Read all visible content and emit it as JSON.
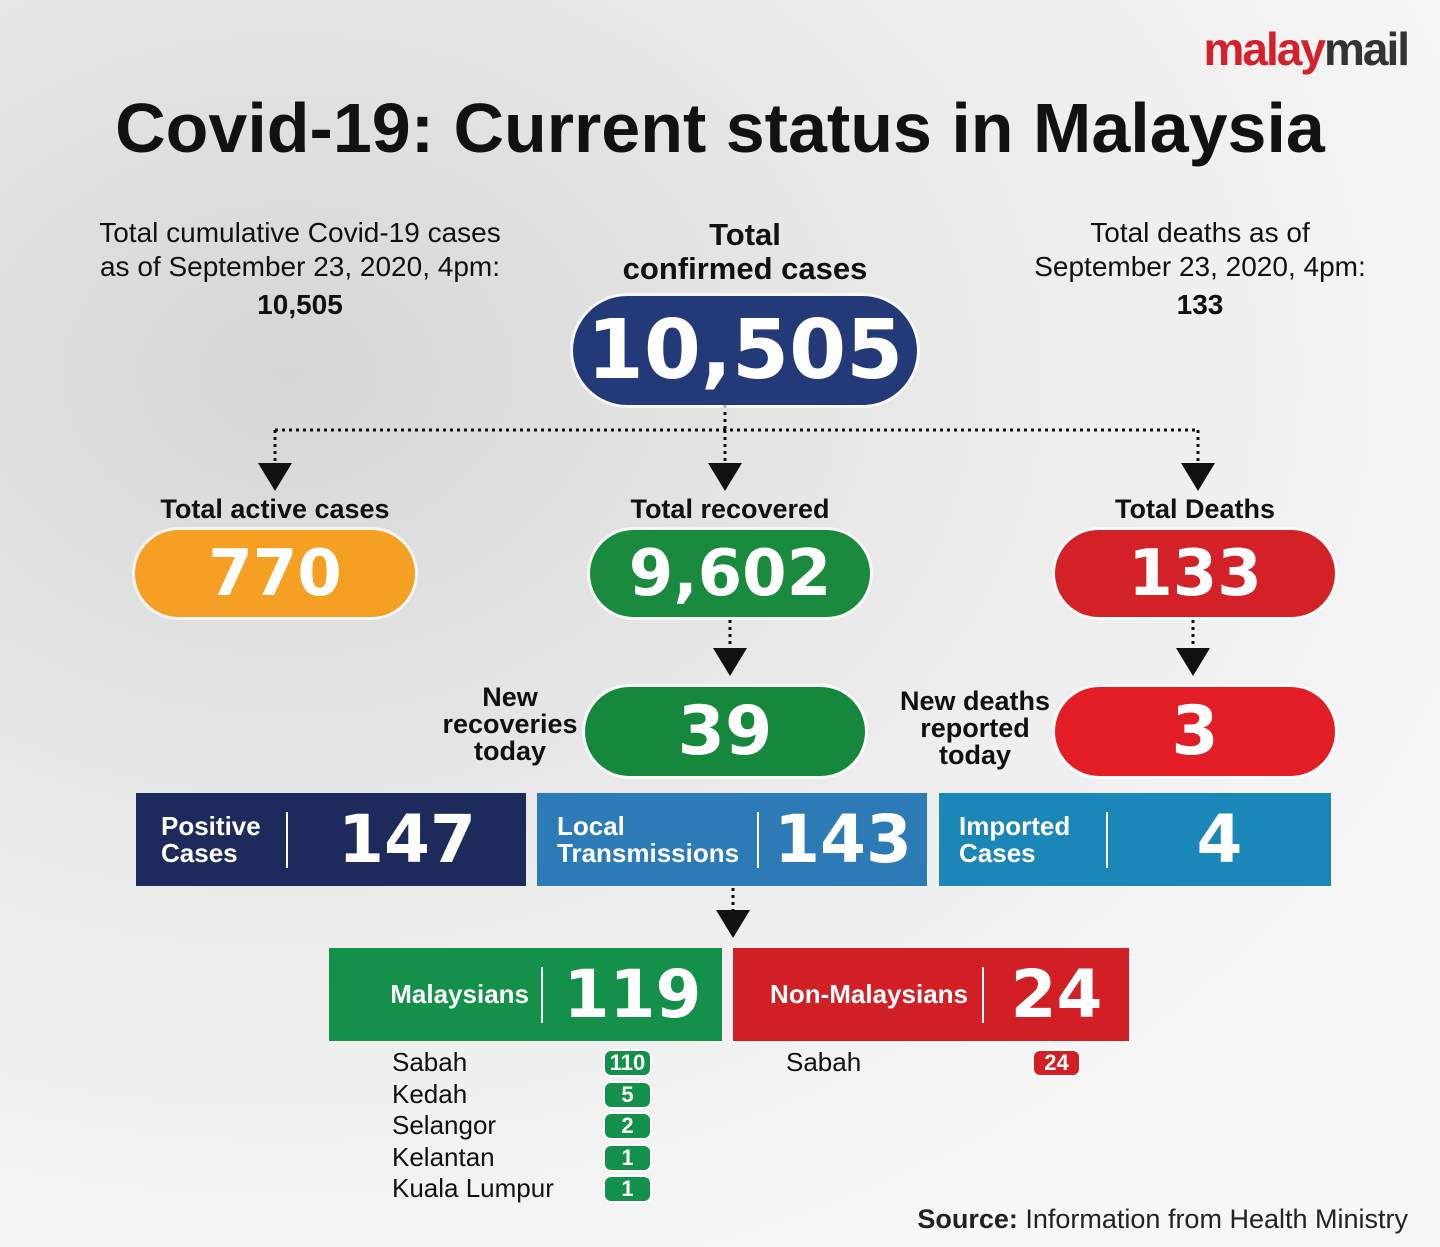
{
  "logo": {
    "part1": "malay",
    "part2": "mail"
  },
  "title": "Covid-19: Current status in Malaysia",
  "cumulative": {
    "line1": "Total cumulative Covid-19 cases",
    "line2": "as of September 23, 2020, 4pm:",
    "value": "10,505"
  },
  "confirmed": {
    "line1": "Total",
    "line2": "confirmed cases",
    "value": "10,505"
  },
  "deaths_as_of": {
    "line1": "Total deaths as of",
    "line2": "September 23, 2020, 4pm:",
    "value": "133"
  },
  "active": {
    "label": "Total active cases",
    "value": "770"
  },
  "recovered": {
    "label": "Total recovered",
    "value": "9,602"
  },
  "deaths": {
    "label": "Total Deaths",
    "value": "133"
  },
  "new_recoveries": {
    "lines": [
      "New",
      "recoveries",
      "today"
    ],
    "value": "39"
  },
  "new_deaths": {
    "lines": [
      "New deaths",
      "reported",
      "today"
    ],
    "value": "3"
  },
  "positive": {
    "lines": [
      "Positive",
      "Cases"
    ],
    "value": "147"
  },
  "local": {
    "lines": [
      "Local",
      "Transmissions"
    ],
    "value": "143"
  },
  "imported": {
    "lines": [
      "Imported",
      "Cases"
    ],
    "value": "4"
  },
  "malaysians": {
    "label": "Malaysians",
    "value": "119",
    "states": [
      {
        "name": "Sabah",
        "value": "110"
      },
      {
        "name": "Kedah",
        "value": "5"
      },
      {
        "name": "Selangor",
        "value": "2"
      },
      {
        "name": "Kelantan",
        "value": "1"
      },
      {
        "name": "Kuala Lumpur",
        "value": "1"
      }
    ]
  },
  "non_malaysians": {
    "label": "Non-Malaysians",
    "value": "24",
    "states": [
      {
        "name": "Sabah",
        "value": "24"
      }
    ]
  },
  "source": {
    "label": "Source:",
    "text": "Information from Health Ministry"
  }
}
